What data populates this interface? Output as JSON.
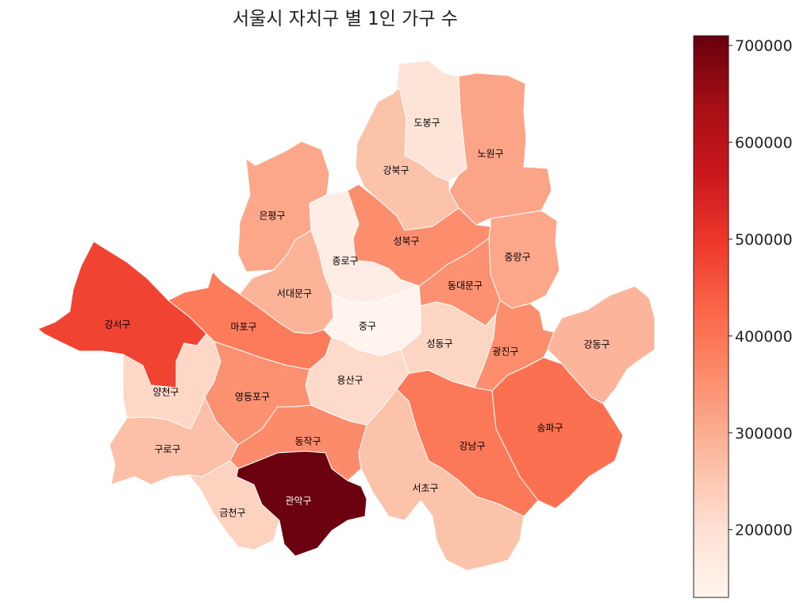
{
  "title": "서울시 자치구 별 1인 가구 수",
  "colormap": "Reds",
  "colorbar": {
    "min": 130000,
    "max": 710000,
    "ticks": [
      "200000",
      "300000",
      "400000",
      "500000",
      "600000",
      "700000"
    ]
  },
  "districts": [
    {
      "id": "dobong",
      "label": "도봉구",
      "value": 190000
    },
    {
      "id": "nowon",
      "label": "노원구",
      "value": 315000
    },
    {
      "id": "gangbuk",
      "label": "강북구",
      "value": 260000
    },
    {
      "id": "eunpyeong",
      "label": "은평구",
      "value": 310000
    },
    {
      "id": "seongbuk",
      "label": "성북구",
      "value": 355000
    },
    {
      "id": "jongno",
      "label": "종로구",
      "value": 160000
    },
    {
      "id": "jungnang",
      "label": "중랑구",
      "value": 310000
    },
    {
      "id": "seodaemun",
      "label": "서대문구",
      "value": 290000
    },
    {
      "id": "dongdaemun",
      "label": "동대문구",
      "value": 350000
    },
    {
      "id": "gangseo",
      "label": "강서구",
      "value": 480000
    },
    {
      "id": "mapo",
      "label": "마포구",
      "value": 390000
    },
    {
      "id": "jung",
      "label": "중구",
      "value": 135000
    },
    {
      "id": "seongdong",
      "label": "성동구",
      "value": 225000
    },
    {
      "id": "gwangjin",
      "label": "광진구",
      "value": 355000
    },
    {
      "id": "gangdong",
      "label": "강동구",
      "value": 285000
    },
    {
      "id": "yangcheon",
      "label": "양천구",
      "value": 220000
    },
    {
      "id": "yongsan",
      "label": "용산구",
      "value": 215000
    },
    {
      "id": "yeongdeungpo",
      "label": "영등포구",
      "value": 350000
    },
    {
      "id": "songpa",
      "label": "송파구",
      "value": 410000
    },
    {
      "id": "gangnam",
      "label": "강남구",
      "value": 395000
    },
    {
      "id": "guro",
      "label": "구로구",
      "value": 265000
    },
    {
      "id": "dongjak",
      "label": "동작구",
      "value": 360000
    },
    {
      "id": "seocho",
      "label": "서초구",
      "value": 260000
    },
    {
      "id": "geumcheon",
      "label": "금천구",
      "value": 230000
    },
    {
      "id": "gwanak",
      "label": "관악구",
      "value": 705000
    }
  ]
}
